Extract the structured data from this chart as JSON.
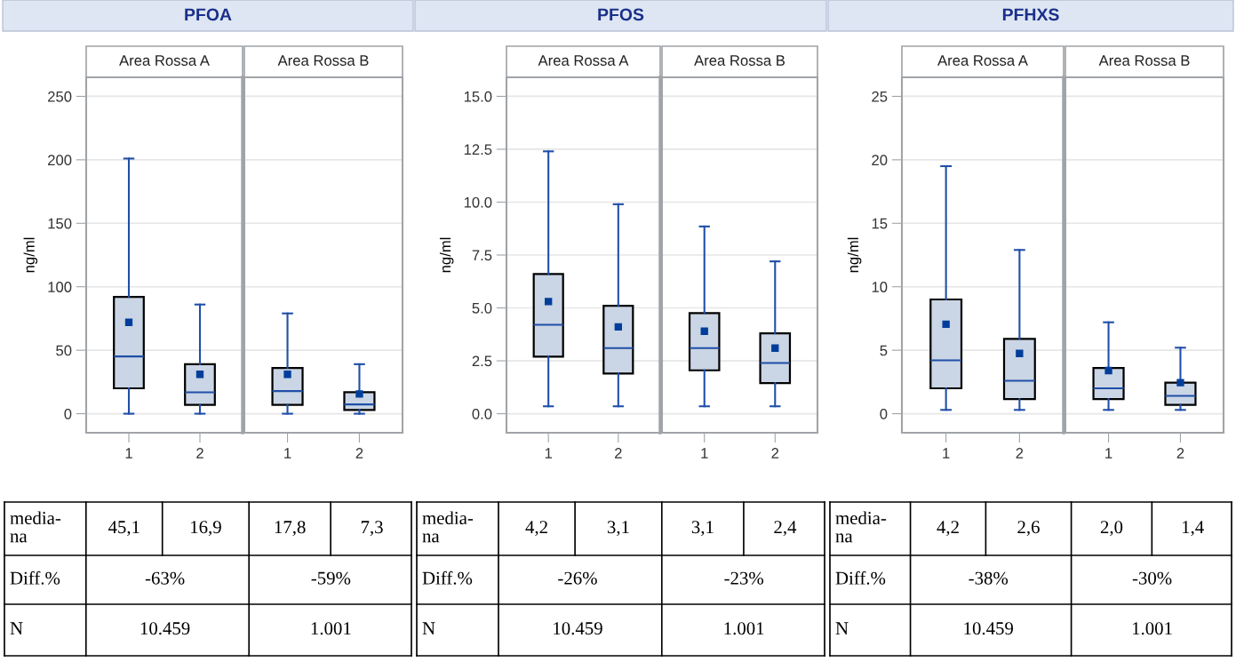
{
  "chart_data": [
    {
      "type": "box",
      "title": "PFOA",
      "subtitle": "Area Rossa A",
      "ylabel": "ng/ml",
      "categories": [
        "1",
        "2"
      ],
      "color": "#cad5e5",
      "marker": "square",
      "grid": "y",
      "ylim": [
        -15,
        265
      ],
      "yticks": [
        0,
        50,
        100,
        150,
        200,
        250
      ],
      "boxes": [
        {
          "low": 0,
          "q1": 20,
          "median": 45.1,
          "q3": 92,
          "high": 201,
          "mean": 72
        },
        {
          "low": 0,
          "q1": 7,
          "median": 16.9,
          "q3": 39,
          "high": 86,
          "mean": 31
        }
      ],
      "annotations": [
        "media-\nna",
        "45,1",
        "16,9",
        "Diff.%",
        "-63%",
        "N",
        "10.459"
      ]
    },
    {
      "type": "box",
      "subtitle": "Area Rossa B",
      "categories": [
        "1",
        "2"
      ],
      "color": "#cad5e5",
      "marker": "square",
      "grid": "y",
      "ylim": [
        -15,
        265
      ],
      "yticks": [
        0,
        50,
        100,
        150,
        200,
        250
      ],
      "tick_labels": "x",
      "boxes": [
        {
          "low": 0,
          "q1": 7,
          "median": 17.8,
          "q3": 36,
          "high": 79,
          "mean": 31
        },
        {
          "low": 0,
          "q1": 3,
          "median": 7.3,
          "q3": 17,
          "high": 39,
          "mean": 15.5
        }
      ],
      "annotations": [
        "17,8",
        "7,3",
        "-59%",
        "1.001"
      ]
    },
    {
      "type": "box",
      "title": "PFOS",
      "subtitle": "Area Rossa A",
      "ylabel": "ng/ml",
      "categories": [
        "1",
        "2"
      ],
      "color": "#cad5e5",
      "marker": "square",
      "grid": "y",
      "ylim": [
        -0.9,
        15.9
      ],
      "yticks": [
        {
          "value": 0,
          "label": "0.0"
        },
        2.5,
        {
          "value": 5,
          "label": "5.0"
        },
        7.5,
        {
          "value": 10,
          "label": "10.0"
        },
        12.5,
        {
          "value": 15,
          "label": "15.0"
        }
      ],
      "boxes": [
        {
          "low": 0.35,
          "q1": 2.7,
          "median": 4.2,
          "q3": 6.6,
          "high": 12.4,
          "mean": 5.3
        },
        {
          "low": 0.35,
          "q1": 1.9,
          "median": 3.1,
          "q3": 5.1,
          "high": 9.9,
          "mean": 4.1
        }
      ],
      "annotations": [
        "media-\nna",
        "4,2",
        "3,1",
        "Diff.%",
        "-26%",
        "N",
        "10.459"
      ]
    },
    {
      "type": "box",
      "subtitle": "Area Rossa B",
      "categories": [
        "1",
        "2"
      ],
      "color": "#cad5e5",
      "marker": "square",
      "grid": "y",
      "ylim": [
        -0.9,
        15.9
      ],
      "yticks": [
        0,
        2.5,
        5,
        7.5,
        10,
        12.5,
        15
      ],
      "tick_labels": "x",
      "boxes": [
        {
          "low": 0.35,
          "q1": 2.05,
          "median": 3.1,
          "q3": 4.75,
          "high": 8.85,
          "mean": 3.9
        },
        {
          "low": 0.35,
          "q1": 1.45,
          "median": 2.4,
          "q3": 3.8,
          "high": 7.2,
          "mean": 3.1
        }
      ],
      "annotations": [
        "3,1",
        "2,4",
        "-23%",
        "1.001"
      ]
    },
    {
      "type": "box",
      "title": "PFHXS",
      "subtitle": "Area Rossa A",
      "ylabel": "ng/ml",
      "categories": [
        "1",
        "2"
      ],
      "color": "#cad5e5",
      "marker": "square",
      "grid": "y",
      "ylim": [
        -1.5,
        26.5
      ],
      "yticks": [
        0,
        5,
        10,
        15,
        20,
        25
      ],
      "boxes": [
        {
          "low": 0.3,
          "q1": 2.0,
          "median": 4.2,
          "q3": 9.0,
          "high": 19.5,
          "mean": 7.05
        },
        {
          "low": 0.3,
          "q1": 1.15,
          "median": 2.6,
          "q3": 5.9,
          "high": 12.9,
          "mean": 4.75
        }
      ],
      "annotations": [
        "media-\nna",
        "4,2",
        "2,6",
        "Diff.%",
        "-38%",
        "N",
        "10.459"
      ]
    },
    {
      "type": "box",
      "subtitle": "Area Rossa B",
      "categories": [
        "1",
        "2"
      ],
      "color": "#cad5e5",
      "marker": "square",
      "grid": "y",
      "ylim": [
        -1.5,
        26.5
      ],
      "yticks": [
        0,
        5,
        10,
        15,
        20,
        25
      ],
      "tick_labels": "x",
      "boxes": [
        {
          "low": 0.3,
          "q1": 1.15,
          "median": 2.0,
          "q3": 3.6,
          "high": 7.2,
          "mean": 3.4
        },
        {
          "low": 0.3,
          "q1": 0.7,
          "median": 1.4,
          "q3": 2.45,
          "high": 5.2,
          "mean": 2.45
        }
      ],
      "annotations": [
        "2,0",
        "1,4",
        "-30%",
        "1.001"
      ]
    }
  ]
}
